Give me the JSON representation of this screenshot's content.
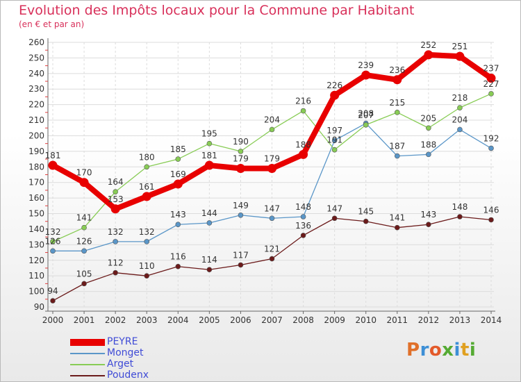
{
  "header": {
    "title": "Evolution des Impôts locaux pour la Commune par Habitant",
    "subtitle": "(en € et par an)"
  },
  "logo": {
    "text": "Proxiti"
  },
  "colors": {
    "title": "#d8305a",
    "legend_text": "#3f4bd6",
    "grid": "#dcdcdc",
    "axis": "#666666"
  },
  "chart_data": {
    "type": "line",
    "title": "Evolution des Impôts locaux pour la Commune par Habitant",
    "subtitle": "(en € et par an)",
    "xlabel": "",
    "ylabel": "",
    "x": [
      "2000",
      "2001",
      "2002",
      "2003",
      "2004",
      "2005",
      "2006",
      "2007",
      "2008",
      "2009",
      "2010",
      "2011",
      "2012",
      "2013",
      "2014"
    ],
    "ylim": [
      90,
      260
    ],
    "ytick_step": 10,
    "grid": true,
    "legend_position": "bottom-left",
    "series": [
      {
        "name": "PEYRE",
        "color": "#e80000",
        "emphasis": true,
        "values": [
          181,
          170,
          153,
          161,
          169,
          181,
          179,
          179,
          188,
          226,
          239,
          236,
          252,
          251,
          237
        ]
      },
      {
        "name": "Monget",
        "color": "#5a96c8",
        "emphasis": false,
        "values": [
          126,
          126,
          132,
          132,
          143,
          144,
          149,
          147,
          148,
          197,
          208,
          187,
          188,
          204,
          192
        ]
      },
      {
        "name": "Arget",
        "color": "#88cc55",
        "emphasis": false,
        "values": [
          132,
          141,
          164,
          180,
          185,
          195,
          190,
          204,
          216,
          191,
          207,
          215,
          205,
          218,
          227
        ]
      },
      {
        "name": "Poudenx",
        "color": "#6b1a1a",
        "emphasis": false,
        "values": [
          94,
          105,
          112,
          110,
          116,
          114,
          117,
          121,
          136,
          147,
          145,
          141,
          143,
          148,
          146
        ]
      }
    ]
  }
}
